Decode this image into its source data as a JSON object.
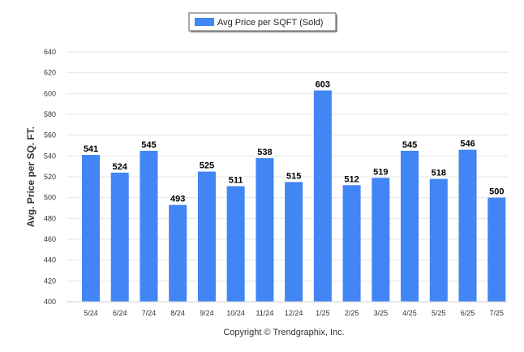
{
  "chart_data": {
    "type": "bar",
    "categories": [
      "5/24",
      "6/24",
      "7/24",
      "8/24",
      "9/24",
      "10/24",
      "11/24",
      "12/24",
      "1/25",
      "2/25",
      "3/25",
      "4/25",
      "5/25",
      "6/25",
      "7/25"
    ],
    "series": [
      {
        "name": "Avg Price per SQFT (Sold)",
        "values": [
          541,
          524,
          545,
          493,
          525,
          511,
          538,
          515,
          603,
          512,
          519,
          545,
          518,
          546,
          500
        ]
      }
    ],
    "ylabel": "Avg. Price per SQ. FT.",
    "xlabel": "",
    "ylim": [
      400,
      640
    ],
    "yticks": [
      400,
      420,
      440,
      460,
      480,
      500,
      520,
      540,
      560,
      580,
      600,
      620,
      640
    ],
    "grid": true,
    "legend_position": "top-center",
    "bar_color": "#4285f4",
    "footer": "Copyright © Trendgraphix, Inc."
  }
}
